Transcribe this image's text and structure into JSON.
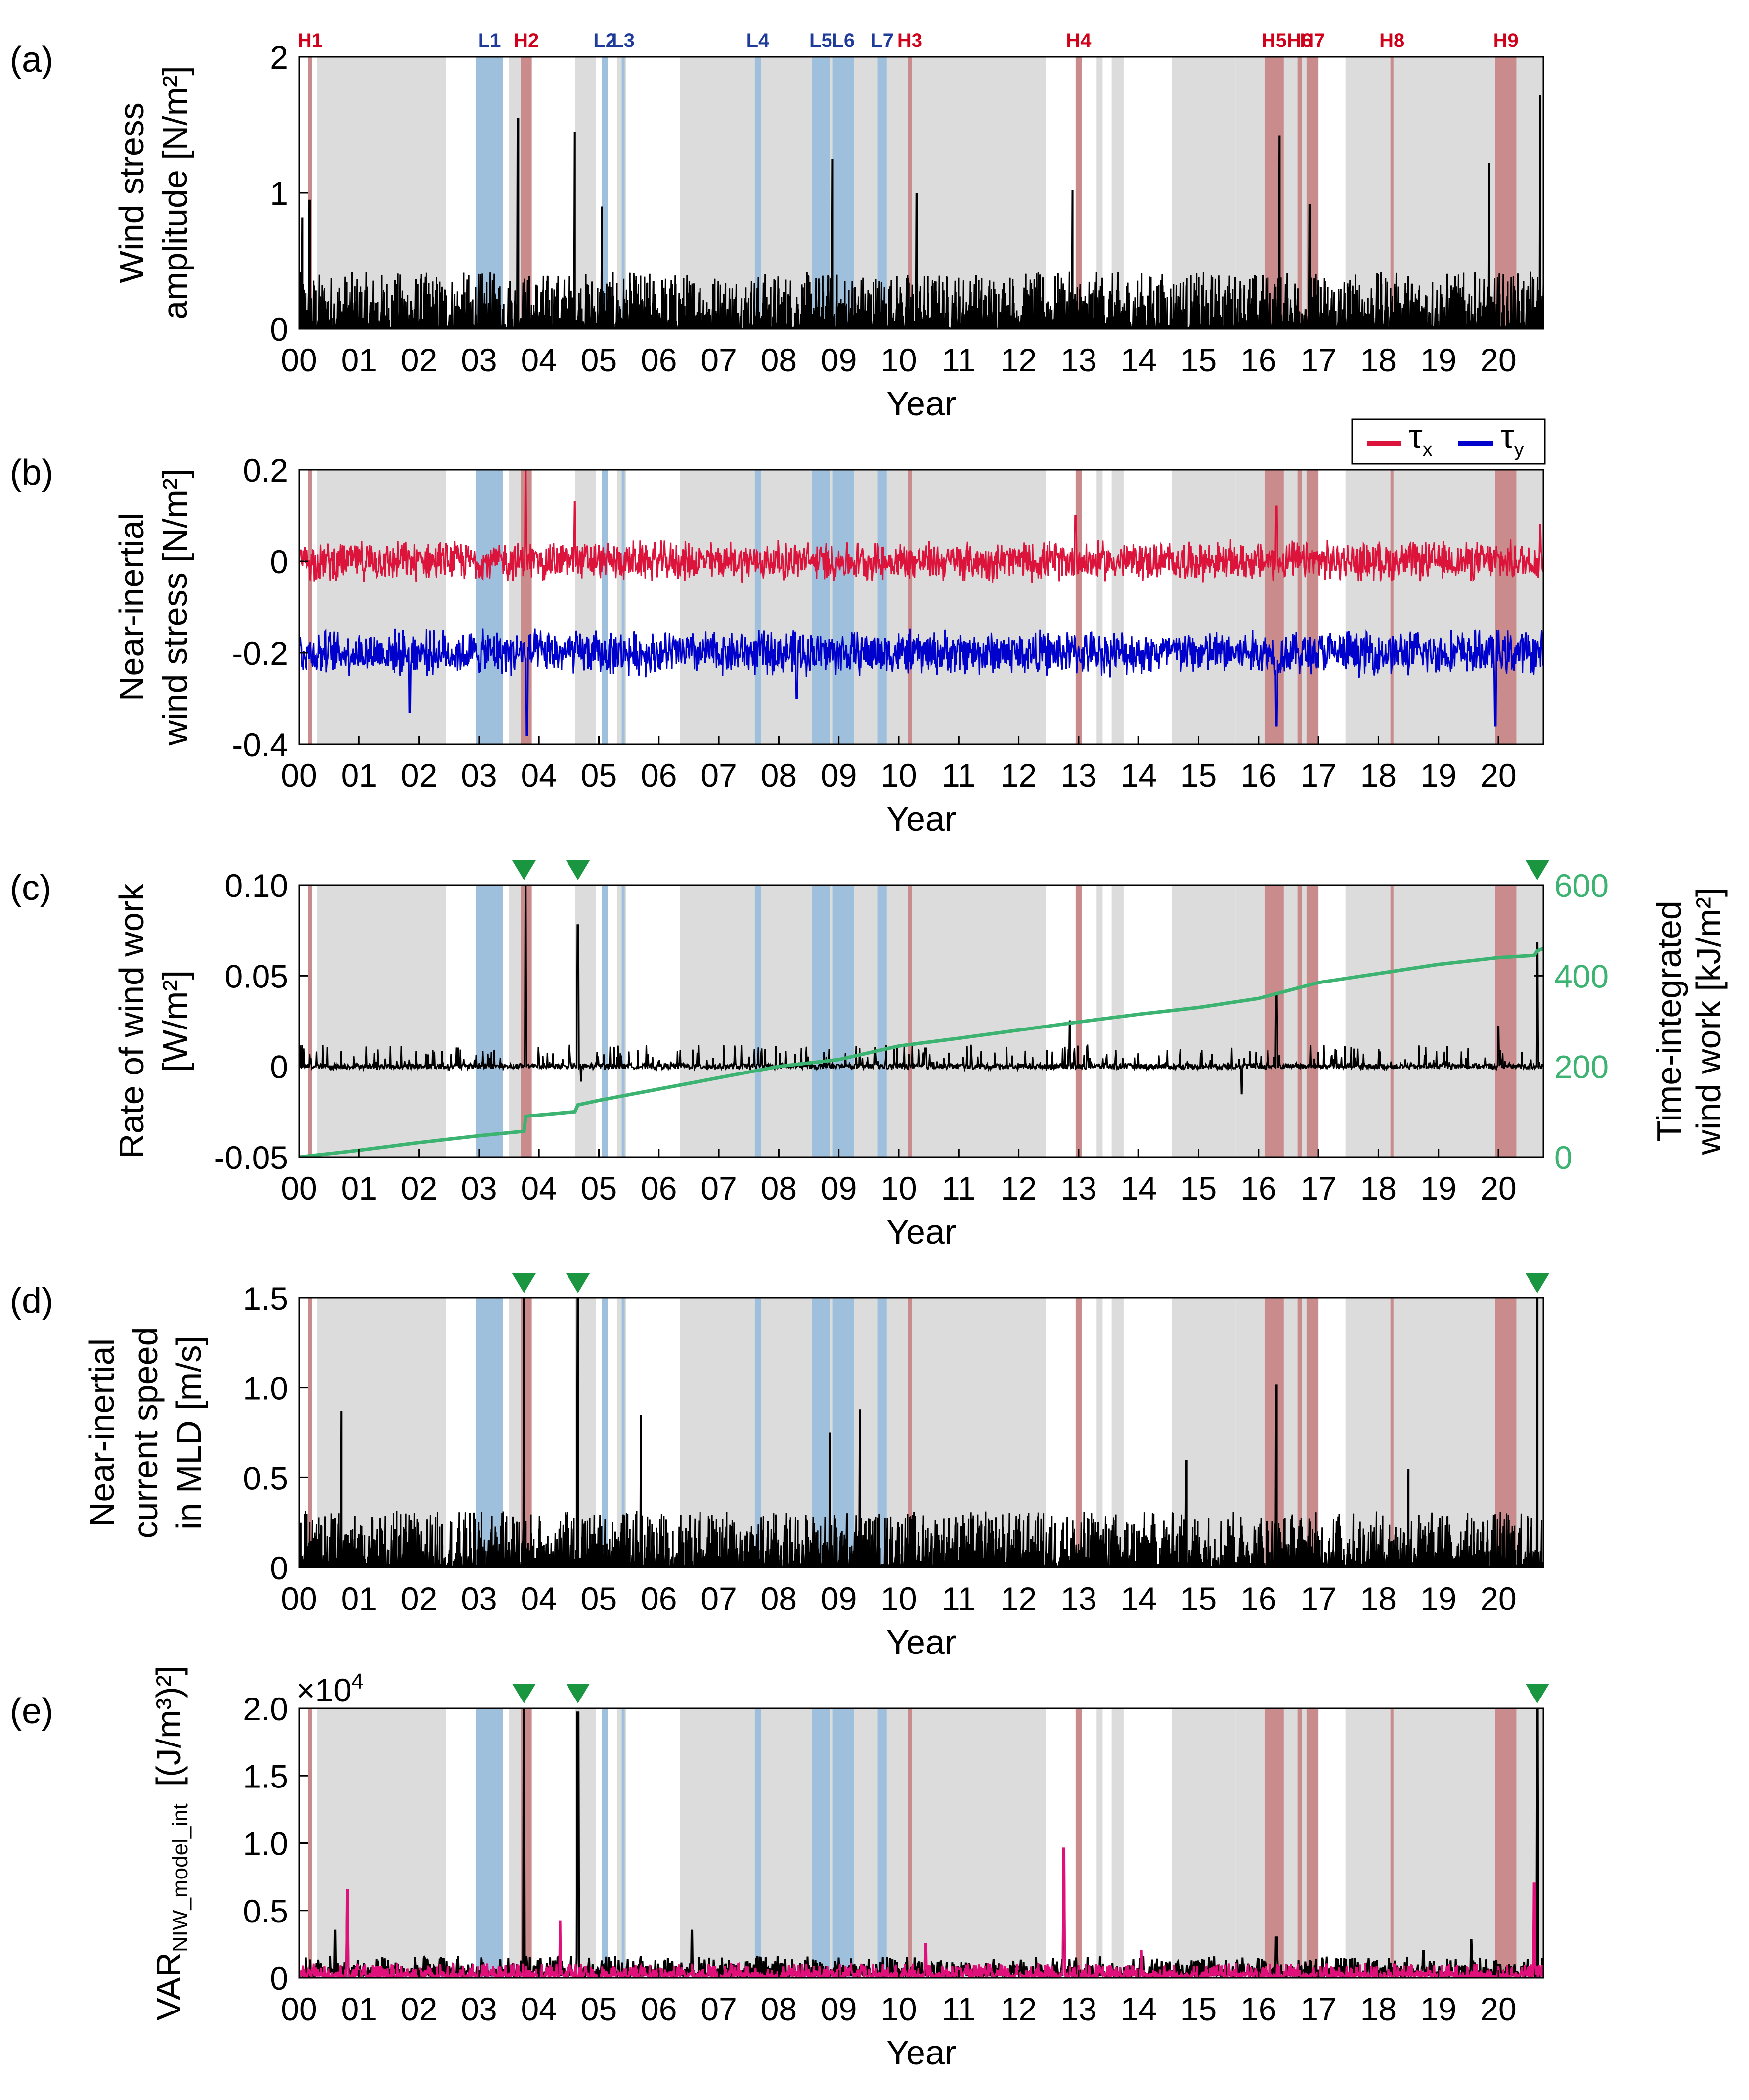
{
  "chart_data": {
    "type": "multi-panel time series",
    "x_axis": {
      "title": "Year",
      "range": [
        0,
        20.75
      ],
      "tick_labels": [
        "00",
        "01",
        "02",
        "03",
        "04",
        "05",
        "06",
        "07",
        "08",
        "09",
        "10",
        "11",
        "12",
        "13",
        "14",
        "15",
        "16",
        "17",
        "18",
        "19",
        "20"
      ]
    },
    "colors": {
      "tau_x": "#dc143c",
      "tau_y": "#0000cc",
      "wind_work_cumulative": "#3cb371",
      "var_magenta": "#e0107a",
      "series_black": "#000000",
      "gray_shade": "#dcdcdc",
      "low_event": "#9fc0dd",
      "high_event": "#c98b8b",
      "high_label": "#d0021b",
      "low_label": "#1f3b99",
      "marker": "#1a9641"
    },
    "gray_periods": [
      [
        0.3,
        2.45
      ],
      [
        3.5,
        3.75
      ],
      [
        4.6,
        4.95
      ],
      [
        5.3,
        5.45
      ],
      [
        6.35,
        12.45
      ],
      [
        13.3,
        13.4
      ],
      [
        13.55,
        13.75
      ],
      [
        14.55,
        15.62
      ],
      [
        15.62,
        17.0
      ],
      [
        17.45,
        20.75
      ]
    ],
    "low_events": [
      {
        "label": "L1",
        "start": 2.95,
        "end": 3.4
      },
      {
        "label": "L2",
        "start": 5.05,
        "end": 5.15
      },
      {
        "label": "L3",
        "start": 5.38,
        "end": 5.43
      },
      {
        "label": "L4",
        "start": 7.6,
        "end": 7.7
      },
      {
        "label": "L5",
        "start": 8.55,
        "end": 8.85
      },
      {
        "label": "L6",
        "start": 8.9,
        "end": 9.25
      },
      {
        "label": "L7",
        "start": 9.65,
        "end": 9.8
      }
    ],
    "high_events": [
      {
        "label": "H1",
        "start": 0.15,
        "end": 0.22
      },
      {
        "label": "H2",
        "start": 3.7,
        "end": 3.88
      },
      {
        "label": "H3",
        "start": 10.15,
        "end": 10.22
      },
      {
        "label": "H4",
        "start": 12.95,
        "end": 13.05
      },
      {
        "label": "H5",
        "start": 16.1,
        "end": 16.42
      },
      {
        "label": "H6",
        "start": 16.65,
        "end": 16.72
      },
      {
        "label": "H7",
        "start": 16.8,
        "end": 17.0
      },
      {
        "label": "H8",
        "start": 18.2,
        "end": 18.25
      },
      {
        "label": "H9",
        "start": 19.95,
        "end": 20.3
      }
    ],
    "markers": [
      3.75,
      4.65,
      20.65
    ],
    "panels": [
      {
        "id": "a",
        "panel_label": "(a)",
        "type": "line",
        "ylabel": [
          "Wind stress",
          "amplitude [N/m²]"
        ],
        "ylim": [
          0,
          2
        ],
        "yticks": [
          0,
          1,
          2
        ],
        "ytick_labels": [
          "0",
          "1",
          "2"
        ],
        "series": [
          {
            "name": "wind stress amplitude",
            "color": "#000000",
            "baseline": 0.12,
            "peaks": [
              [
                0.05,
                0.82
              ],
              [
                0.18,
                0.95
              ],
              [
                3.65,
                1.55
              ],
              [
                4.6,
                1.45
              ],
              [
                5.05,
                0.9
              ],
              [
                8.9,
                1.25
              ],
              [
                10.3,
                1.0
              ],
              [
                12.9,
                1.02
              ],
              [
                16.35,
                1.42
              ],
              [
                16.85,
                0.92
              ],
              [
                19.85,
                1.22
              ],
              [
                20.7,
                1.72
              ]
            ]
          }
        ]
      },
      {
        "id": "b",
        "panel_label": "(b)",
        "type": "line",
        "ylabel": [
          "Near-inertial",
          "wind stress [N/m²]"
        ],
        "ylim": [
          -0.4,
          0.2
        ],
        "yticks": [
          -0.4,
          -0.2,
          0,
          0.2
        ],
        "ytick_labels": [
          "-0.4",
          "-0.2",
          "0",
          "0.2"
        ],
        "legend": {
          "position": "top-right",
          "entries": [
            {
              "text": "τ",
              "sub": "x",
              "color": "#dc143c"
            },
            {
              "text": "τ",
              "sub": "y",
              "color": "#0000cc"
            }
          ]
        },
        "series": [
          {
            "name": "τx",
            "color": "#dc143c",
            "offset": 0,
            "amplitude": 0.035,
            "peaks": [
              [
                3.78,
                0.2
              ],
              [
                4.6,
                0.13
              ],
              [
                12.95,
                0.1
              ],
              [
                16.3,
                0.12
              ],
              [
                20.7,
                0.08
              ]
            ]
          },
          {
            "name": "τy",
            "color": "#0000cc",
            "offset": -0.2,
            "amplitude": 0.04,
            "peaks": [
              [
                3.8,
                -0.38
              ],
              [
                1.85,
                -0.33
              ],
              [
                16.3,
                -0.36
              ],
              [
                19.95,
                -0.36
              ],
              [
                8.3,
                -0.3
              ]
            ]
          }
        ]
      },
      {
        "id": "c",
        "panel_label": "(c)",
        "type": "line",
        "ylabel": [
          "Rate of wind work",
          "[W/m²]"
        ],
        "ylim": [
          -0.05,
          0.1
        ],
        "yticks": [
          -0.05,
          0,
          0.05,
          0.1
        ],
        "ytick_labels": [
          "-0.05",
          "0",
          "0.05",
          "0.10"
        ],
        "y2label": [
          "Time-integrated",
          "wind work [kJ/m²]"
        ],
        "y2lim": [
          0,
          600
        ],
        "y2ticks": [
          0,
          200,
          400,
          600
        ],
        "y2tick_labels": [
          "0",
          "200",
          "400",
          "600"
        ],
        "series": [
          {
            "name": "rate of wind work",
            "color": "#000000",
            "baseline": 0,
            "peaks": [
              [
                3.78,
                0.1
              ],
              [
                4.65,
                0.078
              ],
              [
                4.7,
                -0.008
              ],
              [
                10.45,
                0.01
              ],
              [
                12.85,
                0.025
              ],
              [
                15.72,
                -0.015
              ],
              [
                16.3,
                0.04
              ],
              [
                20.65,
                0.068
              ],
              [
                20.0,
                0.022
              ]
            ]
          },
          {
            "name": "time-integrated wind work",
            "color": "#3cb371",
            "axis": "right",
            "x": [
              0,
              1,
              2,
              3,
              3.75,
              3.78,
              4.6,
              4.65,
              5,
              6,
              7,
              8,
              9,
              10,
              11,
              12,
              13,
              14,
              15,
              16,
              17,
              18,
              19,
              20,
              20.6,
              20.65,
              20.75
            ],
            "y": [
              0,
              15,
              32,
              47,
              57,
              90,
              100,
              115,
              125,
              150,
              175,
              200,
              215,
              245,
              262,
              280,
              298,
              315,
              330,
              350,
              385,
              405,
              425,
              440,
              445,
              455,
              460
            ]
          }
        ]
      },
      {
        "id": "d",
        "panel_label": "(d)",
        "type": "line",
        "ylabel": [
          "Near-inertial",
          "current speed",
          "in MLD [m/s]"
        ],
        "ylim": [
          0,
          1.5
        ],
        "yticks": [
          0,
          0.5,
          1.0,
          1.5
        ],
        "ytick_labels": [
          "0",
          "0.5",
          "1.0",
          "1.5"
        ],
        "series": [
          {
            "name": "near-inertial current speed",
            "color": "#000000",
            "baseline": 0.09,
            "peaks": [
              [
                0.7,
                0.87
              ],
              [
                3.75,
                1.5
              ],
              [
                4.65,
                1.5
              ],
              [
                5.7,
                0.85
              ],
              [
                8.85,
                0.75
              ],
              [
                9.35,
                0.88
              ],
              [
                16.3,
                1.02
              ],
              [
                20.65,
                1.5
              ],
              [
                14.8,
                0.6
              ],
              [
                18.5,
                0.55
              ]
            ]
          }
        ]
      },
      {
        "id": "e",
        "panel_label": "(e)",
        "type": "line",
        "ylabel": [
          "VAR",
          "NIW_model_int",
          "[(J/m³)²]"
        ],
        "scale_label": "×10",
        "scale_exp": "4",
        "ylim": [
          0,
          2.0
        ],
        "yticks": [
          0,
          0.5,
          1.0,
          1.5,
          2.0
        ],
        "ytick_labels": [
          "0",
          "0.5",
          "1.0",
          "1.5",
          "2.0"
        ],
        "series": [
          {
            "name": "black series",
            "color": "#000000",
            "baseline": 0.03,
            "peaks": [
              [
                0.6,
                0.35
              ],
              [
                0.8,
                0.55
              ],
              [
                3.75,
                2.0
              ],
              [
                4.65,
                1.97
              ],
              [
                6.55,
                0.35
              ],
              [
                12.75,
                0.8
              ],
              [
                16.3,
                0.3
              ],
              [
                18.75,
                0.2
              ],
              [
                19.55,
                0.28
              ],
              [
                20.65,
                2.0
              ]
            ]
          },
          {
            "name": "magenta series",
            "color": "#e0107a",
            "baseline": 0.02,
            "peaks": [
              [
                0.8,
                0.65
              ],
              [
                4.35,
                0.42
              ],
              [
                12.75,
                0.96
              ],
              [
                20.6,
                0.7
              ],
              [
                10.45,
                0.25
              ],
              [
                14.05,
                0.2
              ]
            ]
          }
        ]
      }
    ]
  }
}
